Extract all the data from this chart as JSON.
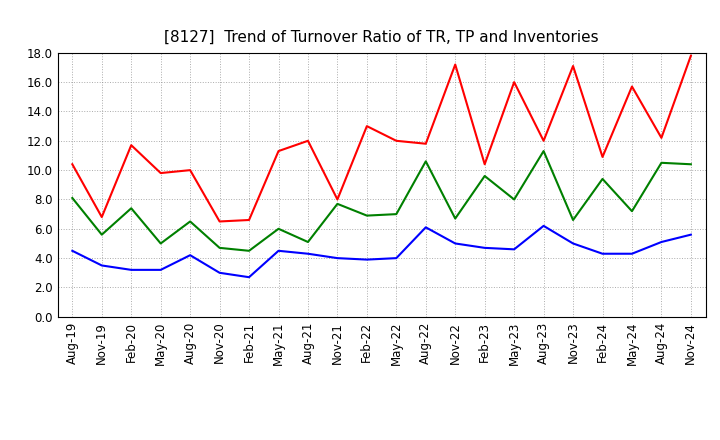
{
  "title": "[8127]  Trend of Turnover Ratio of TR, TP and Inventories",
  "xlabel": "",
  "ylabel": "",
  "ylim": [
    0.0,
    18.0
  ],
  "yticks": [
    0.0,
    2.0,
    4.0,
    6.0,
    8.0,
    10.0,
    12.0,
    14.0,
    16.0,
    18.0
  ],
  "x_labels": [
    "Aug-19",
    "Nov-19",
    "Feb-20",
    "May-20",
    "Aug-20",
    "Nov-20",
    "Feb-21",
    "May-21",
    "Aug-21",
    "Nov-21",
    "Feb-22",
    "May-22",
    "Aug-22",
    "Nov-22",
    "Feb-23",
    "May-23",
    "Aug-23",
    "Nov-23",
    "Feb-24",
    "May-24",
    "Aug-24",
    "Nov-24"
  ],
  "trade_receivables": [
    10.4,
    6.8,
    11.7,
    9.8,
    10.0,
    6.5,
    6.6,
    11.3,
    12.0,
    8.0,
    13.0,
    12.0,
    11.8,
    17.2,
    10.4,
    16.0,
    12.0,
    17.1,
    10.9,
    15.7,
    12.2,
    17.8
  ],
  "trade_payables": [
    4.5,
    3.5,
    3.2,
    3.2,
    4.2,
    3.0,
    2.7,
    4.5,
    4.3,
    4.0,
    3.9,
    4.0,
    6.1,
    5.0,
    4.7,
    4.6,
    6.2,
    5.0,
    4.3,
    4.3,
    5.1,
    5.6
  ],
  "inventories": [
    8.1,
    5.6,
    7.4,
    5.0,
    6.5,
    4.7,
    4.5,
    6.0,
    5.1,
    7.7,
    6.9,
    7.0,
    10.6,
    6.7,
    9.6,
    8.0,
    11.3,
    6.6,
    9.4,
    7.2,
    10.5,
    10.4
  ],
  "tr_color": "#FF0000",
  "tp_color": "#0000FF",
  "inv_color": "#008000",
  "bg_color": "#FFFFFF",
  "plot_bg_color": "#FFFFFF",
  "grid_color": "#888888",
  "line_width": 1.5,
  "title_fontsize": 11,
  "tick_fontsize": 8.5,
  "legend_fontsize": 9.5
}
